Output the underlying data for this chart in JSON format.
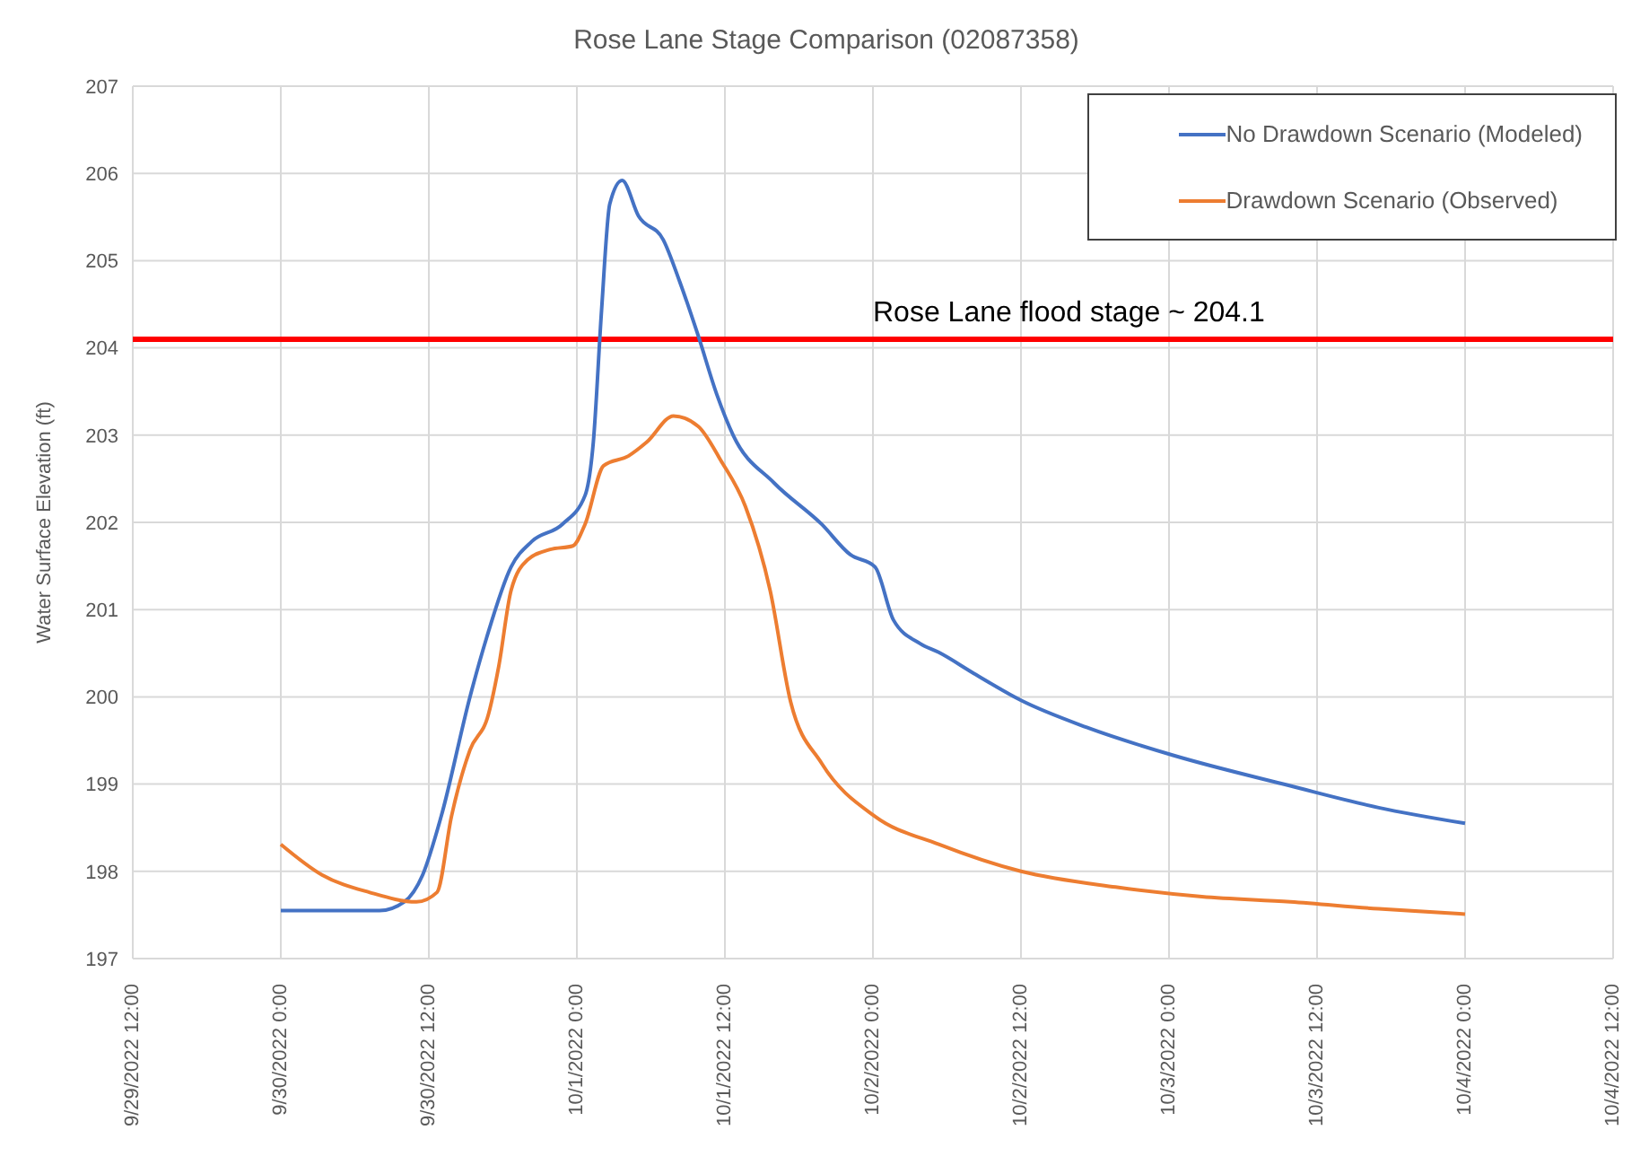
{
  "chart_data": {
    "type": "line",
    "title": "Rose Lane Stage Comparison (02087358)",
    "ylabel": "Water Surface Elevation (ft)",
    "xlim": [
      "2022-09-29T12:00",
      "2022-10-04T12:00"
    ],
    "xticks": [
      {
        "value": "2022-09-29T12:00",
        "label": "9/29/2022 12:00"
      },
      {
        "value": "2022-09-30T00:00",
        "label": "9/30/2022 0:00"
      },
      {
        "value": "2022-09-30T12:00",
        "label": "9/30/2022 12:00"
      },
      {
        "value": "2022-10-01T00:00",
        "label": "10/1/2022 0:00"
      },
      {
        "value": "2022-10-01T12:00",
        "label": "10/1/2022 12:00"
      },
      {
        "value": "2022-10-02T00:00",
        "label": "10/2/2022 0:00"
      },
      {
        "value": "2022-10-02T12:00",
        "label": "10/2/2022 12:00"
      },
      {
        "value": "2022-10-03T00:00",
        "label": "10/3/2022 0:00"
      },
      {
        "value": "2022-10-03T12:00",
        "label": "10/3/2022 12:00"
      },
      {
        "value": "2022-10-04T00:00",
        "label": "10/4/2022 0:00"
      },
      {
        "value": "2022-10-04T12:00",
        "label": "10/4/2022 12:00"
      }
    ],
    "ylim": [
      197,
      207
    ],
    "yticks": [
      197,
      198,
      199,
      200,
      201,
      202,
      203,
      204,
      205,
      206,
      207
    ],
    "grid": true,
    "legend": "top right",
    "marker": "none",
    "line_style": "solid",
    "ref_lines": [
      {
        "axis": "y",
        "value": 204.1,
        "label": "Rose Lane flood stage ~ 204.1",
        "color": "#ff0000"
      }
    ],
    "series": [
      {
        "name": "No Drawdown Scenario (Modeled)",
        "color": "#4472c4",
        "x": [
          "2022-09-30T00:00",
          "2022-09-30T08:00",
          "2022-09-30T10:00",
          "2022-09-30T11:30",
          "2022-09-30T13:00",
          "2022-09-30T15:20",
          "2022-09-30T16:40",
          "2022-09-30T18:40",
          "2022-09-30T20:20",
          "2022-09-30T22:50",
          "2022-10-01T00:40",
          "2022-10-01T01:20",
          "2022-10-01T02:00",
          "2022-10-01T02:40",
          "2022-10-01T03:40",
          "2022-10-01T05:00",
          "2022-10-01T07:00",
          "2022-10-01T08:20",
          "2022-10-01T09:50",
          "2022-10-01T11:20",
          "2022-10-01T12:40",
          "2022-10-01T16:00",
          "2022-10-01T19:50",
          "2022-10-01T22:10",
          "2022-10-02T00:10",
          "2022-10-02T01:40",
          "2022-10-02T03:50",
          "2022-10-02T05:20",
          "2022-10-02T08:10",
          "2022-10-02T12:00",
          "2022-10-02T17:20",
          "2022-10-03T00:20",
          "2022-10-03T09:50",
          "2022-10-03T17:00",
          "2022-10-04T00:00"
        ],
        "values": [
          197.55,
          197.55,
          197.65,
          197.96,
          198.63,
          200.0,
          200.67,
          201.49,
          201.78,
          201.98,
          202.31,
          202.92,
          204.43,
          205.65,
          205.92,
          205.51,
          205.24,
          204.76,
          204.14,
          203.47,
          203.0,
          202.45,
          201.98,
          201.63,
          201.49,
          200.88,
          200.61,
          200.51,
          200.27,
          199.96,
          199.65,
          199.33,
          198.98,
          198.73,
          198.55
        ]
      },
      {
        "name": "Drawdown Scenario (Observed)",
        "color": "#ed7d31",
        "x": [
          "2022-09-30T00:00",
          "2022-09-30T03:20",
          "2022-09-30T07:10",
          "2022-09-30T11:00",
          "2022-09-30T12:40",
          "2022-09-30T13:50",
          "2022-09-30T15:20",
          "2022-09-30T16:50",
          "2022-09-30T17:40",
          "2022-09-30T18:40",
          "2022-09-30T20:00",
          "2022-09-30T21:50",
          "2022-09-30T23:40",
          "2022-10-01T00:40",
          "2022-10-01T02:10",
          "2022-10-01T04:10",
          "2022-10-01T05:40",
          "2022-10-01T07:50",
          "2022-10-01T09:50",
          "2022-10-01T11:40",
          "2022-10-01T13:40",
          "2022-10-01T15:40",
          "2022-10-01T17:20",
          "2022-10-01T19:50",
          "2022-10-02T00:10",
          "2022-10-02T05:20",
          "2022-10-02T12:00",
          "2022-10-02T19:40",
          "2022-10-03T02:40",
          "2022-10-03T09:50",
          "2022-10-03T17:00",
          "2022-10-04T00:00"
        ],
        "values": [
          198.31,
          197.96,
          197.76,
          197.65,
          197.76,
          198.63,
          199.39,
          199.8,
          200.35,
          201.22,
          201.57,
          201.69,
          201.73,
          201.98,
          202.65,
          202.76,
          202.92,
          203.22,
          203.1,
          202.71,
          202.18,
          201.22,
          199.94,
          199.24,
          198.63,
          198.31,
          198.0,
          197.82,
          197.71,
          197.65,
          197.57,
          197.51
        ]
      }
    ]
  }
}
